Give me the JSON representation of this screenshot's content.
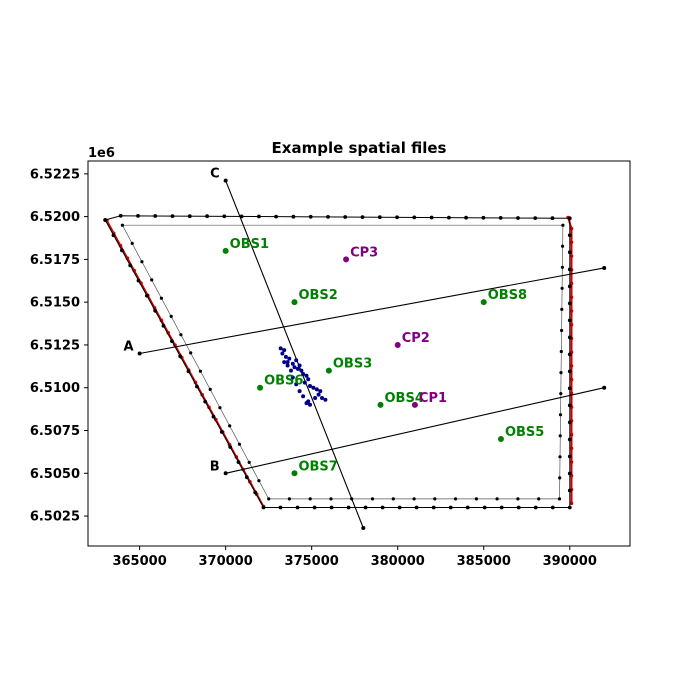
{
  "chart_data": {
    "type": "scatter",
    "title": "Example spatial files",
    "xlabel": "",
    "ylabel": "",
    "y_offset_label": "1e6",
    "xlim": [
      362000,
      393500
    ],
    "ylim": [
      6500750,
      6523250
    ],
    "x_ticks": [
      365000,
      370000,
      375000,
      380000,
      385000,
      390000
    ],
    "x_tick_labels": [
      "365000",
      "370000",
      "375000",
      "380000",
      "385000",
      "390000"
    ],
    "y_ticks": [
      6502500,
      6505000,
      6507500,
      6510000,
      6512500,
      6515000,
      6517500,
      6520000,
      6522500
    ],
    "y_tick_labels": [
      "6.5025",
      "6.5050",
      "6.5075",
      "6.5100",
      "6.5125",
      "6.5150",
      "6.5175",
      "6.5200",
      "6.5225"
    ],
    "grid": false,
    "colors": {
      "obs": "#008000",
      "cp": "#800080",
      "boundary_red": "#cc0000",
      "cluster": "#00008b",
      "line": "#000000"
    },
    "outer_boundary": [
      [
        363000,
        6519800
      ],
      [
        372200,
        6503000
      ],
      [
        390000,
        6503000
      ],
      [
        390000,
        6519900
      ],
      [
        363900,
        6520050
      ]
    ],
    "inner_boundary": [
      [
        364000,
        6519500
      ],
      [
        372500,
        6503500
      ],
      [
        389400,
        6503500
      ],
      [
        389600,
        6519500
      ]
    ],
    "red_boundaries": [
      [
        [
          363100,
          6519750
        ],
        [
          372200,
          6503050
        ]
      ],
      [
        [
          389900,
          6519950
        ],
        [
          390100,
          6519300
        ],
        [
          390100,
          6503250
        ]
      ]
    ],
    "cross_sections": [
      {
        "name": "A",
        "points": [
          [
            365000,
            6512000
          ],
          [
            392000,
            6517000
          ]
        ]
      },
      {
        "name": "B",
        "points": [
          [
            370000,
            6505000
          ],
          [
            392000,
            6510000
          ]
        ]
      },
      {
        "name": "C",
        "points": [
          [
            370000,
            6522100
          ],
          [
            378000,
            6501800
          ]
        ]
      }
    ],
    "obs_points": [
      {
        "name": "OBS1",
        "x": 370000,
        "y": 6518000
      },
      {
        "name": "OBS2",
        "x": 374000,
        "y": 6515000
      },
      {
        "name": "OBS3",
        "x": 376000,
        "y": 6511000
      },
      {
        "name": "OBS4",
        "x": 379000,
        "y": 6509000
      },
      {
        "name": "OBS5",
        "x": 386000,
        "y": 6507000
      },
      {
        "name": "OBS6",
        "x": 372000,
        "y": 6510000
      },
      {
        "name": "OBS7",
        "x": 374000,
        "y": 6505000
      },
      {
        "name": "OBS8",
        "x": 385000,
        "y": 6515000
      }
    ],
    "cp_points": [
      {
        "name": "CP1",
        "x": 381000,
        "y": 6509000
      },
      {
        "name": "CP2",
        "x": 380000,
        "y": 6512500
      },
      {
        "name": "CP3",
        "x": 377000,
        "y": 6517500
      }
    ],
    "cluster_points": [
      [
        373200,
        6512300
      ],
      [
        373400,
        6512200
      ],
      [
        373300,
        6512000
      ],
      [
        373500,
        6511800
      ],
      [
        373700,
        6511700
      ],
      [
        373600,
        6511500
      ],
      [
        373900,
        6511400
      ],
      [
        374000,
        6511200
      ],
      [
        374200,
        6511100
      ],
      [
        374400,
        6511000
      ],
      [
        374500,
        6510800
      ],
      [
        374700,
        6510700
      ],
      [
        374800,
        6510500
      ],
      [
        374600,
        6510300
      ],
      [
        374900,
        6510100
      ],
      [
        375100,
        6510000
      ],
      [
        375300,
        6509900
      ],
      [
        375500,
        6509800
      ],
      [
        375400,
        6509600
      ],
      [
        375600,
        6509400
      ],
      [
        375800,
        6509300
      ],
      [
        375200,
        6509400
      ],
      [
        374800,
        6509200
      ],
      [
        374900,
        6509000
      ],
      [
        374700,
        6509100
      ],
      [
        374500,
        6509500
      ],
      [
        374300,
        6509800
      ],
      [
        374100,
        6510200
      ],
      [
        373900,
        6510600
      ],
      [
        373800,
        6511000
      ],
      [
        373600,
        6511300
      ],
      [
        373400,
        6511500
      ],
      [
        374100,
        6511600
      ],
      [
        374300,
        6511300
      ]
    ]
  }
}
